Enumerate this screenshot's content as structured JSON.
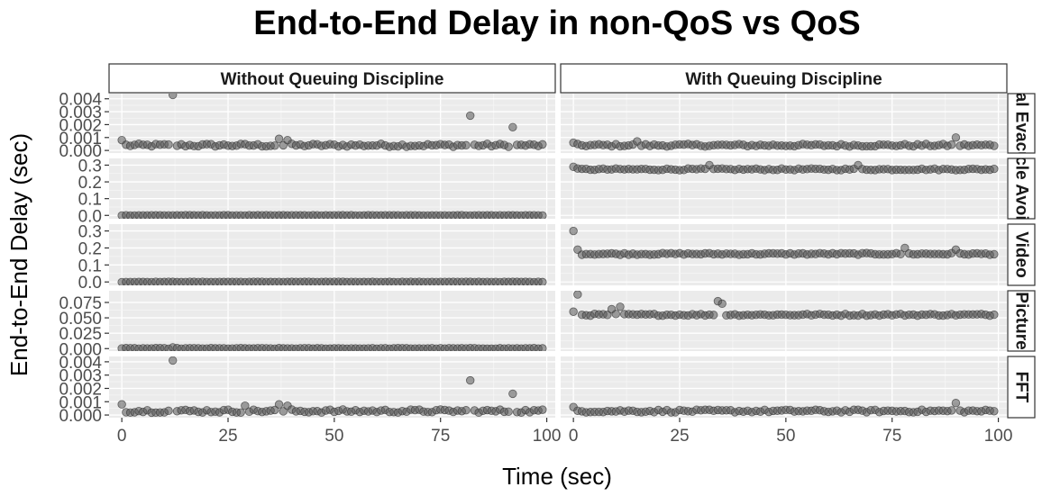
{
  "chart_data": {
    "type": "scatter",
    "title": "End-to-End Delay in non-QoS vs QoS",
    "xlabel": "Time (sec)",
    "ylabel": "End-to-End Delay (sec)",
    "xlim": [
      -3,
      102
    ],
    "x_ticks": [
      0,
      25,
      50,
      75,
      100
    ],
    "columns": [
      "Without Queuing Discipline",
      "With Queuing Discipline"
    ],
    "rows": [
      {
        "label": "Medical Evacuation",
        "ylim": [
          -0.0002,
          0.0044
        ],
        "y_ticks": [
          0.0,
          0.001,
          0.002,
          0.003,
          0.004
        ],
        "y_tick_labels": [
          "0.000",
          "0.001",
          "0.002",
          "0.003",
          "0.004"
        ],
        "series": [
          {
            "base": 0.0004,
            "jitter": 0.00012,
            "outliers": [
              [
                0,
                0.0008
              ],
              [
                12,
                0.0043
              ],
              [
                37,
                0.0009
              ],
              [
                39,
                0.0008
              ],
              [
                82,
                0.0027
              ],
              [
                92,
                0.0018
              ]
            ]
          },
          {
            "base": 0.0004,
            "jitter": 0.0001,
            "outliers": [
              [
                0,
                0.0006
              ],
              [
                15,
                0.0007
              ],
              [
                90,
                0.001
              ]
            ]
          }
        ]
      },
      {
        "label": "Obstacle Avoidance",
        "ylim": [
          -0.02,
          0.34
        ],
        "y_ticks": [
          0.0,
          0.1,
          0.2,
          0.3
        ],
        "y_tick_labels": [
          "0.0",
          "0.1",
          "0.2",
          "0.3"
        ],
        "series": [
          {
            "base": 0.0,
            "jitter": 0.001,
            "outliers": []
          },
          {
            "base": 0.275,
            "jitter": 0.005,
            "outliers": [
              [
                0,
                0.29
              ],
              [
                32,
                0.3
              ],
              [
                67,
                0.3
              ]
            ]
          }
        ]
      },
      {
        "label": "Video",
        "ylim": [
          -0.02,
          0.34
        ],
        "y_ticks": [
          0.0,
          0.1,
          0.2,
          0.3
        ],
        "y_tick_labels": [
          "0.0",
          "0.1",
          "0.2",
          "0.3"
        ],
        "series": [
          {
            "base": 0.0,
            "jitter": 0.001,
            "outliers": []
          },
          {
            "base": 0.165,
            "jitter": 0.005,
            "outliers": [
              [
                0,
                0.3
              ],
              [
                1,
                0.19
              ],
              [
                78,
                0.2
              ],
              [
                90,
                0.19
              ]
            ]
          }
        ]
      },
      {
        "label": "Picture",
        "ylim": [
          -0.004,
          0.094
        ],
        "y_ticks": [
          0.0,
          0.025,
          0.05,
          0.075
        ],
        "y_tick_labels": [
          "0.000",
          "0.025",
          "0.050",
          "0.075"
        ],
        "series": [
          {
            "base": 0.0003,
            "jitter": 0.0005,
            "outliers": [
              [
                12,
                0.002
              ]
            ]
          },
          {
            "base": 0.055,
            "jitter": 0.0015,
            "outliers": [
              [
                0,
                0.06
              ],
              [
                1,
                0.088
              ],
              [
                9,
                0.064
              ],
              [
                11,
                0.068
              ],
              [
                34,
                0.077
              ],
              [
                35,
                0.073
              ]
            ]
          }
        ]
      },
      {
        "label": "FFT",
        "ylim": [
          -0.0002,
          0.0044
        ],
        "y_ticks": [
          0.0,
          0.001,
          0.002,
          0.003,
          0.004
        ],
        "y_tick_labels": [
          "0.000",
          "0.001",
          "0.002",
          "0.003",
          "0.004"
        ],
        "series": [
          {
            "base": 0.0003,
            "jitter": 0.00012,
            "outliers": [
              [
                0,
                0.0008
              ],
              [
                12,
                0.0041
              ],
              [
                29,
                0.0007
              ],
              [
                37,
                0.0008
              ],
              [
                39,
                0.0007
              ],
              [
                82,
                0.0026
              ],
              [
                92,
                0.0016
              ]
            ]
          },
          {
            "base": 0.0003,
            "jitter": 0.0001,
            "outliers": [
              [
                0,
                0.0006
              ],
              [
                90,
                0.0009
              ]
            ]
          }
        ]
      }
    ],
    "points_per_series": 100,
    "point_color": "#555555",
    "grid": true,
    "panel_background": "#ebebeb",
    "grid_major_color": "#ffffff"
  }
}
